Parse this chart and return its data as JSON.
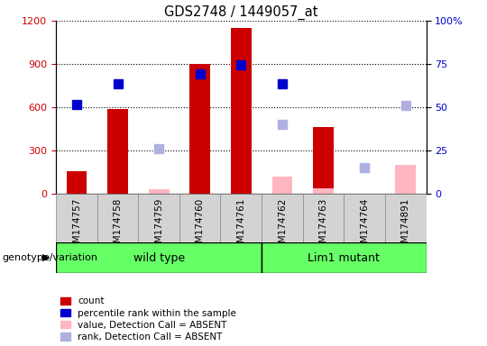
{
  "title": "GDS2748 / 1449057_at",
  "samples": [
    "GSM174757",
    "GSM174758",
    "GSM174759",
    "GSM174760",
    "GSM174761",
    "GSM174762",
    "GSM174763",
    "GSM174764",
    "GSM174891"
  ],
  "group_label": "genotype/variation",
  "group1_name": "wild type",
  "group1_indices": [
    0,
    1,
    2,
    3,
    4
  ],
  "group2_name": "Lim1 mutant",
  "group2_indices": [
    5,
    6,
    7,
    8
  ],
  "group_color": "#66ff66",
  "count": [
    155,
    585,
    null,
    900,
    1150,
    null,
    460,
    null,
    null
  ],
  "percentile_rank": [
    620,
    760,
    null,
    830,
    895,
    760,
    null,
    null,
    null
  ],
  "value_absent": [
    null,
    null,
    30,
    null,
    null,
    120,
    40,
    null,
    200
  ],
  "rank_absent": [
    null,
    null,
    310,
    null,
    null,
    480,
    null,
    180,
    610
  ],
  "ylim_left": [
    0,
    1200
  ],
  "ylim_right": [
    0,
    100
  ],
  "yticks_left": [
    0,
    300,
    600,
    900,
    1200
  ],
  "yticks_right": [
    0,
    25,
    50,
    75,
    100
  ],
  "left_axis_color": "#cc0000",
  "right_axis_color": "#0000cc",
  "bar_color": "#cc0000",
  "blue_marker_color": "#0000cc",
  "pink_bar_color": "#ffb6c1",
  "lavender_marker_color": "#b0b0e0",
  "gray_bg": "#d3d3d3",
  "legend_items": [
    {
      "label": "count",
      "color": "#cc0000"
    },
    {
      "label": "percentile rank within the sample",
      "color": "#0000cc"
    },
    {
      "label": "value, Detection Call = ABSENT",
      "color": "#ffb6c1"
    },
    {
      "label": "rank, Detection Call = ABSENT",
      "color": "#b0b0e0"
    }
  ]
}
